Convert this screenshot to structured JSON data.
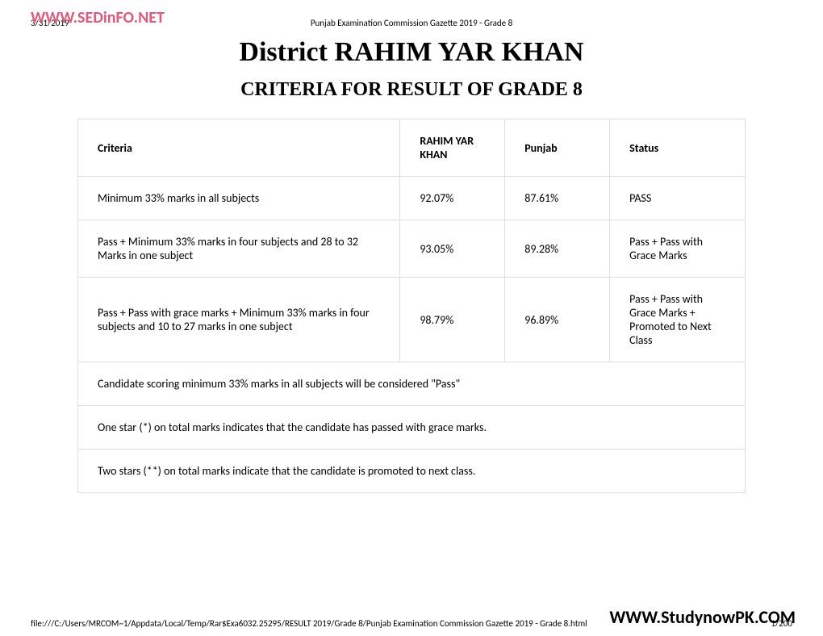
{
  "header": {
    "date": "3/31/2019",
    "title": "Punjab Examination Commission Gazette 2019 - Grade 8"
  },
  "footer": {
    "path": "file:///C:/Users/MRCOM~1/Appdata/Local/Temp/Rar$Exa6032.25295/RESULT 2019/Grade 8/Punjab Examination Commission Gazette 2019 - Grade 8.html",
    "page": "1/200"
  },
  "watermarks": {
    "top": "WWW.SEDinFO.NET",
    "diagonal": "WWW.SEDinFO.NET",
    "bottom": "WWW.StudynowPK.COM"
  },
  "titles": {
    "main": "District RAHIM YAR KHAN",
    "sub": "CRITERIA FOR RESULT OF GRADE 8"
  },
  "table": {
    "headers": {
      "criteria": "Criteria",
      "district": "RAHIM YAR KHAN",
      "punjab": "Punjab",
      "status": "Status"
    },
    "rows": [
      {
        "criteria": "Minimum 33% marks in all subjects",
        "district": "92.07%",
        "punjab": "87.61%",
        "status": "PASS"
      },
      {
        "criteria": "Pass + Minimum 33% marks in four subjects and 28 to 32 Marks in one subject",
        "district": "93.05%",
        "punjab": "89.28%",
        "status": "Pass + Pass with Grace Marks"
      },
      {
        "criteria": "Pass + Pass with grace marks + Minimum 33% marks in four subjects and 10 to 27 marks in one subject",
        "district": "98.79%",
        "punjab": "96.89%",
        "status": "Pass + Pass with Grace Marks + Promoted to Next Class"
      }
    ],
    "notes": [
      "Candidate scoring minimum 33% marks in all subjects will be considered \"Pass\"",
      "One star (*) on total marks indicates that the candidate has passed with grace marks.",
      "Two stars (**) on total marks indicate that the candidate is promoted to next class."
    ]
  },
  "style": {
    "border_color": "#dddddd",
    "watermark_color": "#e05a7a",
    "diag_color": "#ffc3d3",
    "font_body": "Calibri",
    "font_heading": "Times New Roman"
  }
}
